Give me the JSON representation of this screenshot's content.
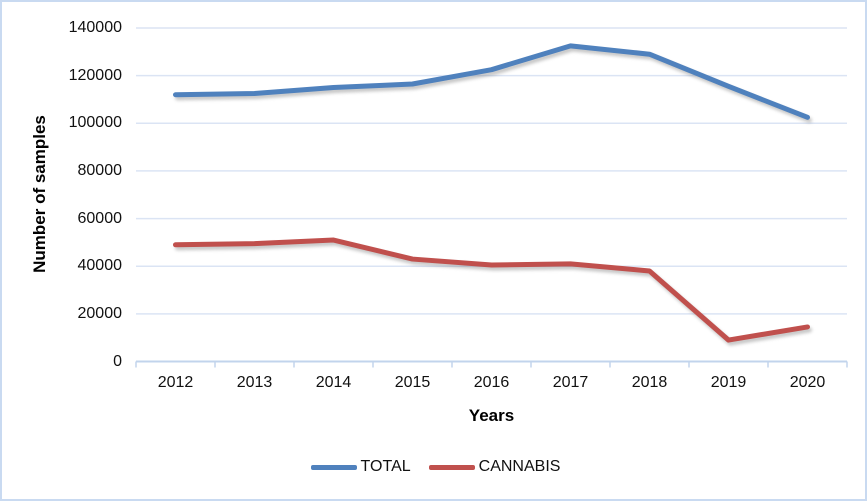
{
  "chart_data": {
    "type": "line",
    "categories": [
      "2012",
      "2013",
      "2014",
      "2015",
      "2016",
      "2017",
      "2018",
      "2019",
      "2020"
    ],
    "series": [
      {
        "name": "TOTAL",
        "color": "#4F81BD",
        "values": [
          112000,
          112500,
          115000,
          116500,
          122500,
          132500,
          129000,
          115500,
          102500
        ]
      },
      {
        "name": "CANNABIS",
        "color": "#C0504D",
        "values": [
          49000,
          49500,
          51000,
          43000,
          40500,
          41000,
          38000,
          9000,
          14500
        ]
      }
    ],
    "xlabel": "Years",
    "ylabel": "Number of samples",
    "ylim": [
      0,
      140000
    ],
    "yticks": [
      0,
      20000,
      40000,
      60000,
      80000,
      100000,
      120000,
      140000
    ],
    "grid": true,
    "legend_position": "bottom",
    "colors": {
      "gridline": "#dbe4f4",
      "axis": "#c2d4ec",
      "frame_border": "#c9daf1",
      "text": "#111111"
    }
  }
}
